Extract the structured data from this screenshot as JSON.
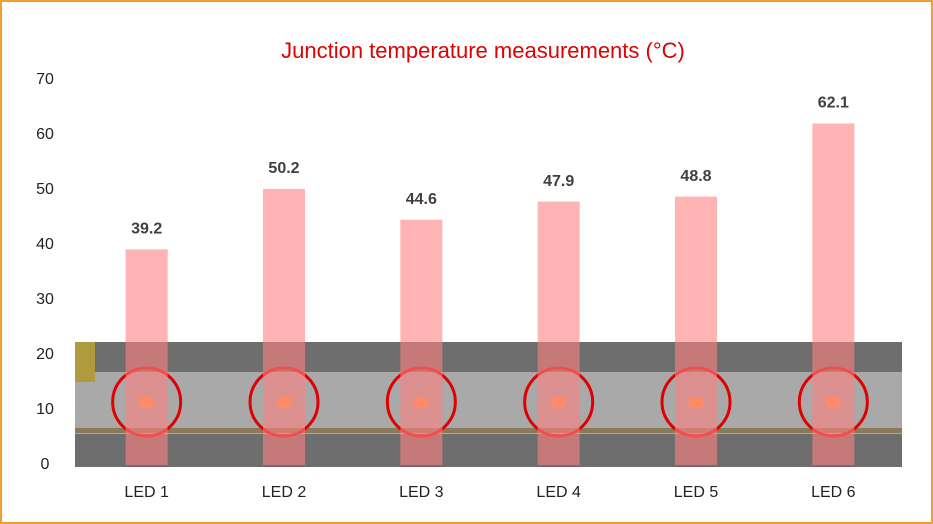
{
  "chart_data": {
    "type": "bar",
    "title": "Junction temperature measurements (°C)",
    "categories": [
      "LED 1",
      "LED 2",
      "LED 3",
      "LED 4",
      "LED 5",
      "LED 6"
    ],
    "values": [
      39.2,
      50.2,
      44.6,
      47.9,
      48.8,
      62.1
    ],
    "color": "#ff8080",
    "ylim": [
      0,
      70
    ],
    "yticks": [
      0,
      10,
      20,
      30,
      40,
      50,
      60,
      70
    ],
    "grid": false
  }
}
